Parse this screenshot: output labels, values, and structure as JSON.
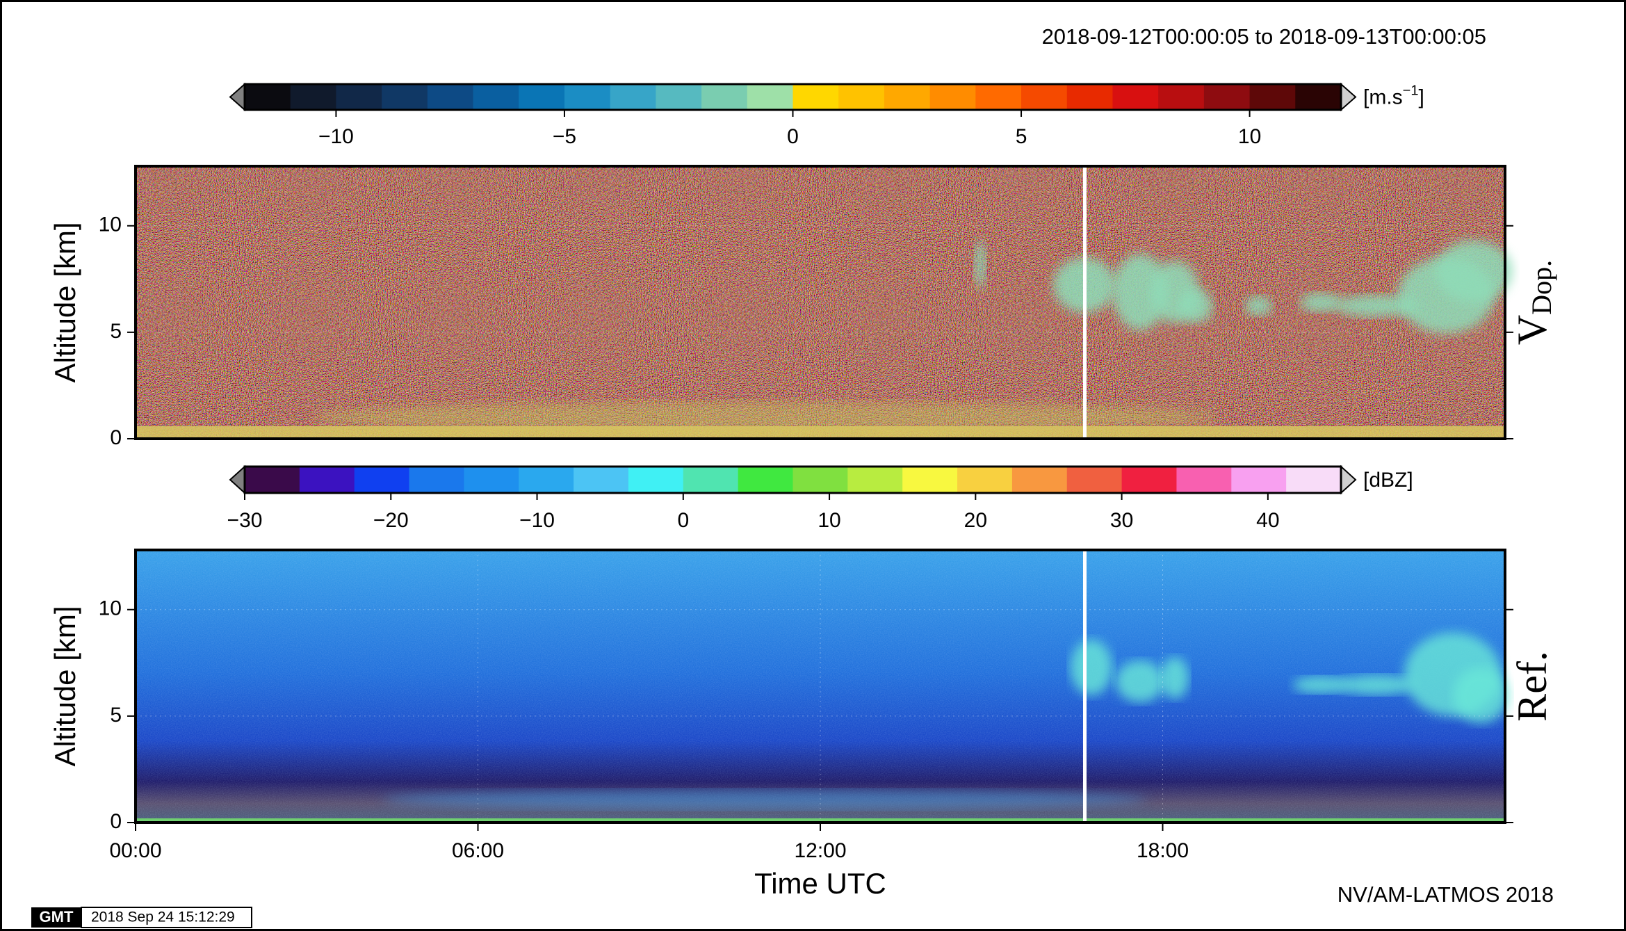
{
  "header": {
    "time_range": "2018-09-12T00:00:05 to 2018-09-13T00:00:05",
    "credit": "NV/AM-LATMOS 2018",
    "gmt_logo": "GMT",
    "gmt_stamp": "2018 Sep 24 15:12:29"
  },
  "chart_data": [
    {
      "type": "heatmap",
      "panel_label": "V",
      "panel_label_sub": "Dop.",
      "ylabel": "Altitude [km]",
      "xlim": [
        0,
        24
      ],
      "ylim": [
        0,
        12.8
      ],
      "yticks": [
        0,
        5,
        10
      ],
      "grid": true,
      "colorbar": {
        "lim": [
          -12,
          12
        ],
        "unit": "[m.s",
        "unit_sup": "−1",
        "unit_end": "]",
        "ticks": [
          {
            "value": -10,
            "label": "−10"
          },
          {
            "value": -5,
            "label": "−5"
          },
          0,
          5,
          10
        ],
        "colors": [
          "#0b0b10",
          "#101a2c",
          "#112848",
          "#103865",
          "#0d4a85",
          "#0a5fa0",
          "#0a75b5",
          "#1b8dc4",
          "#37a5c8",
          "#56bac0",
          "#7acdb0",
          "#9ee0a8",
          "#ffd700",
          "#ffc200",
          "#ffa800",
          "#ff8c00",
          "#ff6a00",
          "#f54a00",
          "#e82a00",
          "#d81010",
          "#b80e10",
          "#8e0c10",
          "#5e0808",
          "#2a0404"
        ]
      }
    },
    {
      "type": "heatmap",
      "panel_label": "Ref.",
      "ylabel": "Altitude [km]",
      "xlabel": "Time UTC",
      "xlim": [
        0,
        24
      ],
      "ylim": [
        0,
        12.8
      ],
      "yticks": [
        0,
        5,
        10
      ],
      "grid": true,
      "xticks": [
        {
          "value": 0,
          "label": "00:00"
        },
        {
          "value": 6,
          "label": "06:00"
        },
        {
          "value": 12,
          "label": "12:00"
        },
        {
          "value": 18,
          "label": "18:00"
        }
      ],
      "colorbar": {
        "lim": [
          -30,
          45
        ],
        "unit": "[dBZ]",
        "ticks": [
          {
            "value": -30,
            "label": "−30"
          },
          {
            "value": -20,
            "label": "−20"
          },
          {
            "value": -10,
            "label": "−10"
          },
          0,
          10,
          20,
          30,
          40
        ],
        "colors": [
          "#3a0a4a",
          "#3b12c0",
          "#1040f0",
          "#1a78ec",
          "#1e90ee",
          "#2aa8ee",
          "#4cc4f4",
          "#40f0f4",
          "#50e4b0",
          "#40e840",
          "#80e040",
          "#b8ec40",
          "#f8f840",
          "#f8d040",
          "#f89840",
          "#f06040",
          "#f02040",
          "#f860b0",
          "#f8a0f0",
          "#f8dcf8"
        ]
      }
    }
  ]
}
